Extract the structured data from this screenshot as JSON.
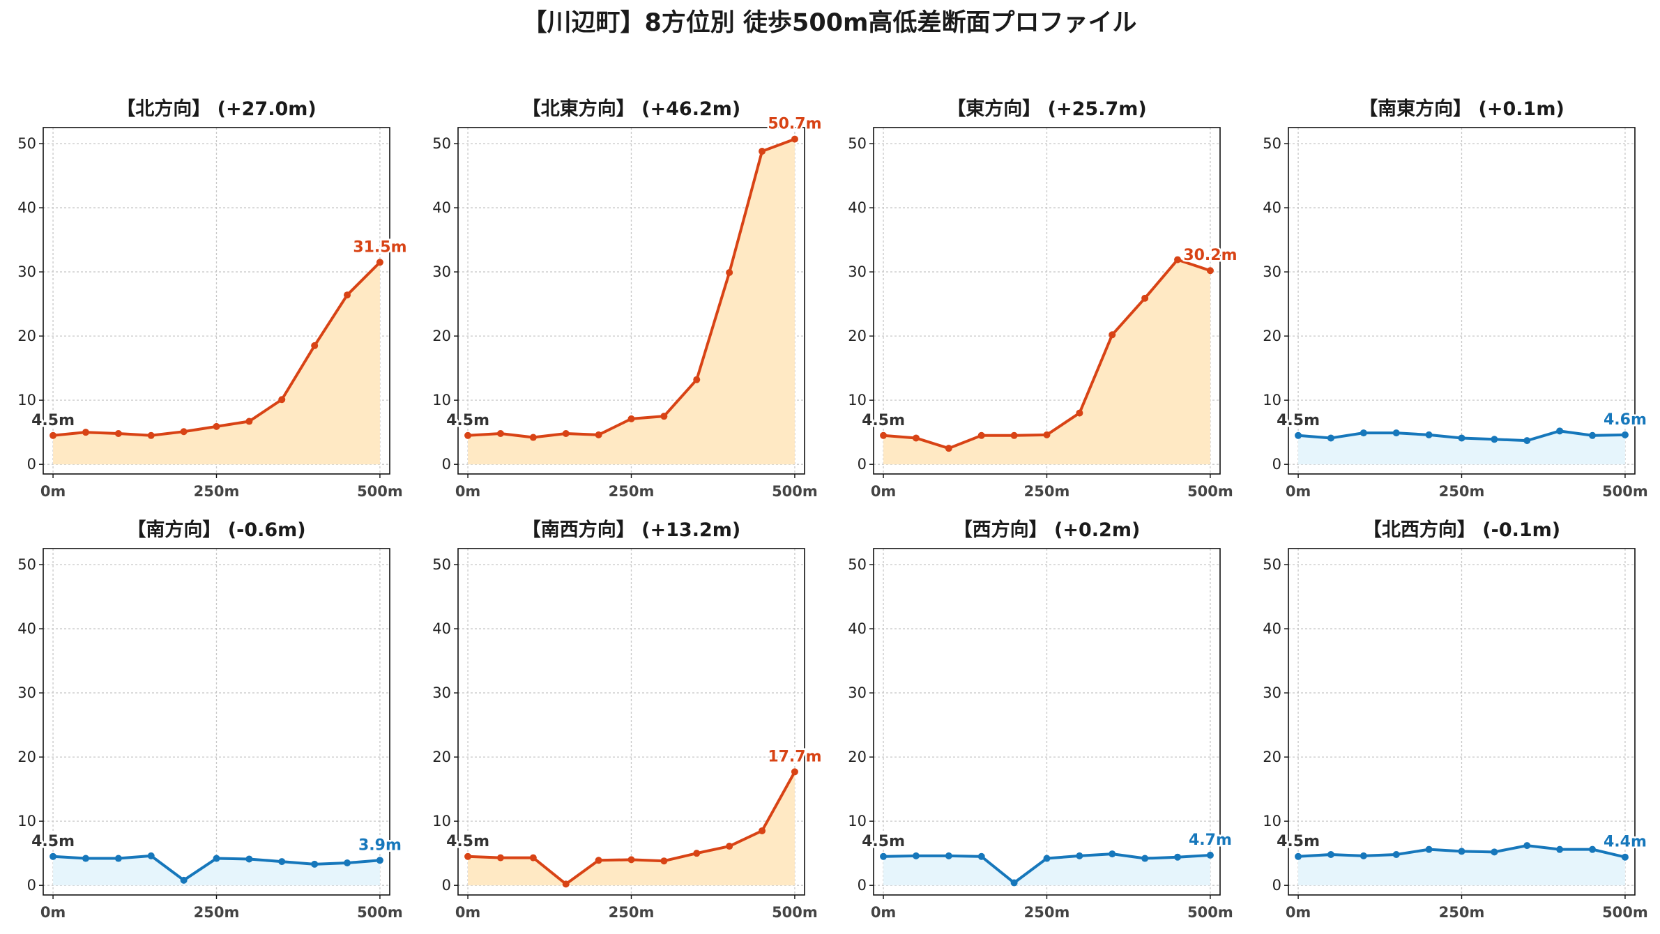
{
  "title": "【川辺町】8方位別 徒歩500m高低差断面プロファイル",
  "colors": {
    "up_line": "#d84315",
    "up_fill": "#ffe9c4",
    "flat_line": "#1677bb",
    "flat_fill": "#e6f5fc",
    "grid": "#c8c8c8",
    "start_label": "#333333"
  },
  "chart_data": {
    "type": "line",
    "x": [
      0,
      50,
      100,
      150,
      200,
      250,
      300,
      350,
      400,
      450,
      500
    ],
    "xticks": [
      "0m",
      "250m",
      "500m"
    ],
    "yticks": [
      "0",
      "10",
      "20",
      "30",
      "40",
      "50"
    ],
    "ylim": [
      -1.5,
      52.5
    ],
    "xlim": [
      -15,
      515
    ],
    "grid": true,
    "panels": [
      {
        "title": "【北方向】 (+27.0m)",
        "trend": "up",
        "values": [
          4.5,
          5.0,
          4.8,
          4.5,
          5.1,
          5.9,
          6.7,
          10.1,
          18.5,
          26.4,
          31.5
        ],
        "start_label": "4.5m",
        "end_label": "31.5m"
      },
      {
        "title": "【北東方向】 (+46.2m)",
        "trend": "up",
        "values": [
          4.5,
          4.8,
          4.2,
          4.8,
          4.6,
          7.1,
          7.5,
          13.2,
          29.9,
          48.8,
          50.7
        ],
        "start_label": "4.5m",
        "end_label": "50.7m"
      },
      {
        "title": "【東方向】 (+25.7m)",
        "trend": "up",
        "values": [
          4.5,
          4.1,
          2.5,
          4.5,
          4.5,
          4.6,
          8.0,
          20.2,
          25.9,
          31.9,
          30.2
        ],
        "start_label": "4.5m",
        "end_label": "30.2m"
      },
      {
        "title": "【南東方向】 (+0.1m)",
        "trend": "flat",
        "values": [
          4.5,
          4.1,
          4.9,
          4.9,
          4.6,
          4.1,
          3.9,
          3.7,
          5.2,
          4.5,
          4.6
        ],
        "start_label": "4.5m",
        "end_label": "4.6m"
      },
      {
        "title": "【南方向】 (-0.6m)",
        "trend": "flat",
        "values": [
          4.5,
          4.2,
          4.2,
          4.6,
          0.8,
          4.2,
          4.1,
          3.7,
          3.3,
          3.5,
          3.9
        ],
        "start_label": "4.5m",
        "end_label": "3.9m"
      },
      {
        "title": "【南西方向】 (+13.2m)",
        "trend": "up",
        "values": [
          4.5,
          4.3,
          4.3,
          0.2,
          3.9,
          4.0,
          3.8,
          5.0,
          6.1,
          8.5,
          17.7
        ],
        "start_label": "4.5m",
        "end_label": "17.7m"
      },
      {
        "title": "【西方向】 (+0.2m)",
        "trend": "flat",
        "values": [
          4.5,
          4.6,
          4.6,
          4.5,
          0.4,
          4.2,
          4.6,
          4.9,
          4.2,
          4.4,
          4.7
        ],
        "start_label": "4.5m",
        "end_label": "4.7m"
      },
      {
        "title": "【北西方向】 (-0.1m)",
        "trend": "flat",
        "values": [
          4.5,
          4.8,
          4.6,
          4.8,
          5.6,
          5.3,
          5.2,
          6.2,
          5.6,
          5.6,
          4.4
        ],
        "start_label": "4.5m",
        "end_label": "4.4m"
      }
    ]
  }
}
